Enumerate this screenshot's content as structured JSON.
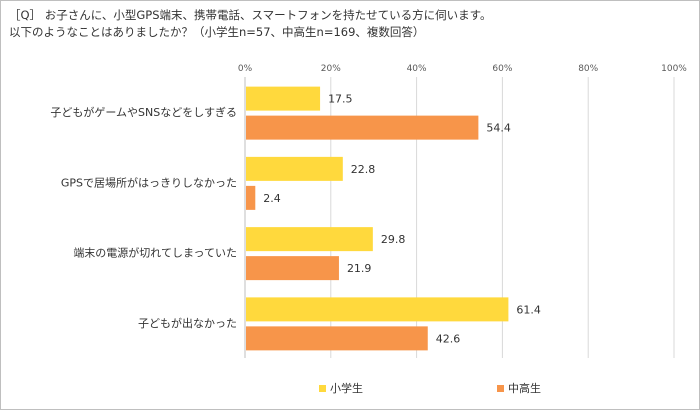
{
  "question": {
    "line1": "［Q］ お子さんに、小型GPS端末、携帯電話、スマートフォンを持たせている方に伺います。",
    "line2": "以下のようなことはありましたか？（小学生n=57、中高生n=169、複数回答）"
  },
  "chart_data": {
    "type": "bar",
    "orientation": "horizontal",
    "unit": "%",
    "xlim": [
      0,
      100
    ],
    "tick_labels": [
      "0%",
      "20%",
      "40%",
      "60%",
      "80%",
      "100%"
    ],
    "categories": [
      "子どもがゲームやSNSなどをしすぎる",
      "GPSで居場所がはっきりしなかった",
      "端末の電源が切れてしまっていた",
      "子どもが出なかった"
    ],
    "series": [
      {
        "name": "小学生",
        "color": "#FFD93D",
        "values": [
          17.5,
          22.8,
          29.8,
          61.4
        ]
      },
      {
        "name": "中高生",
        "color": "#F7954A",
        "values": [
          54.4,
          2.4,
          21.9,
          42.6
        ]
      }
    ],
    "value_labels": [
      [
        "17.5",
        "22.8",
        "29.8",
        "61.4"
      ],
      [
        "54.4",
        "2.4",
        "21.9",
        "42.6"
      ]
    ],
    "legend_position": "bottom",
    "grid": true
  }
}
